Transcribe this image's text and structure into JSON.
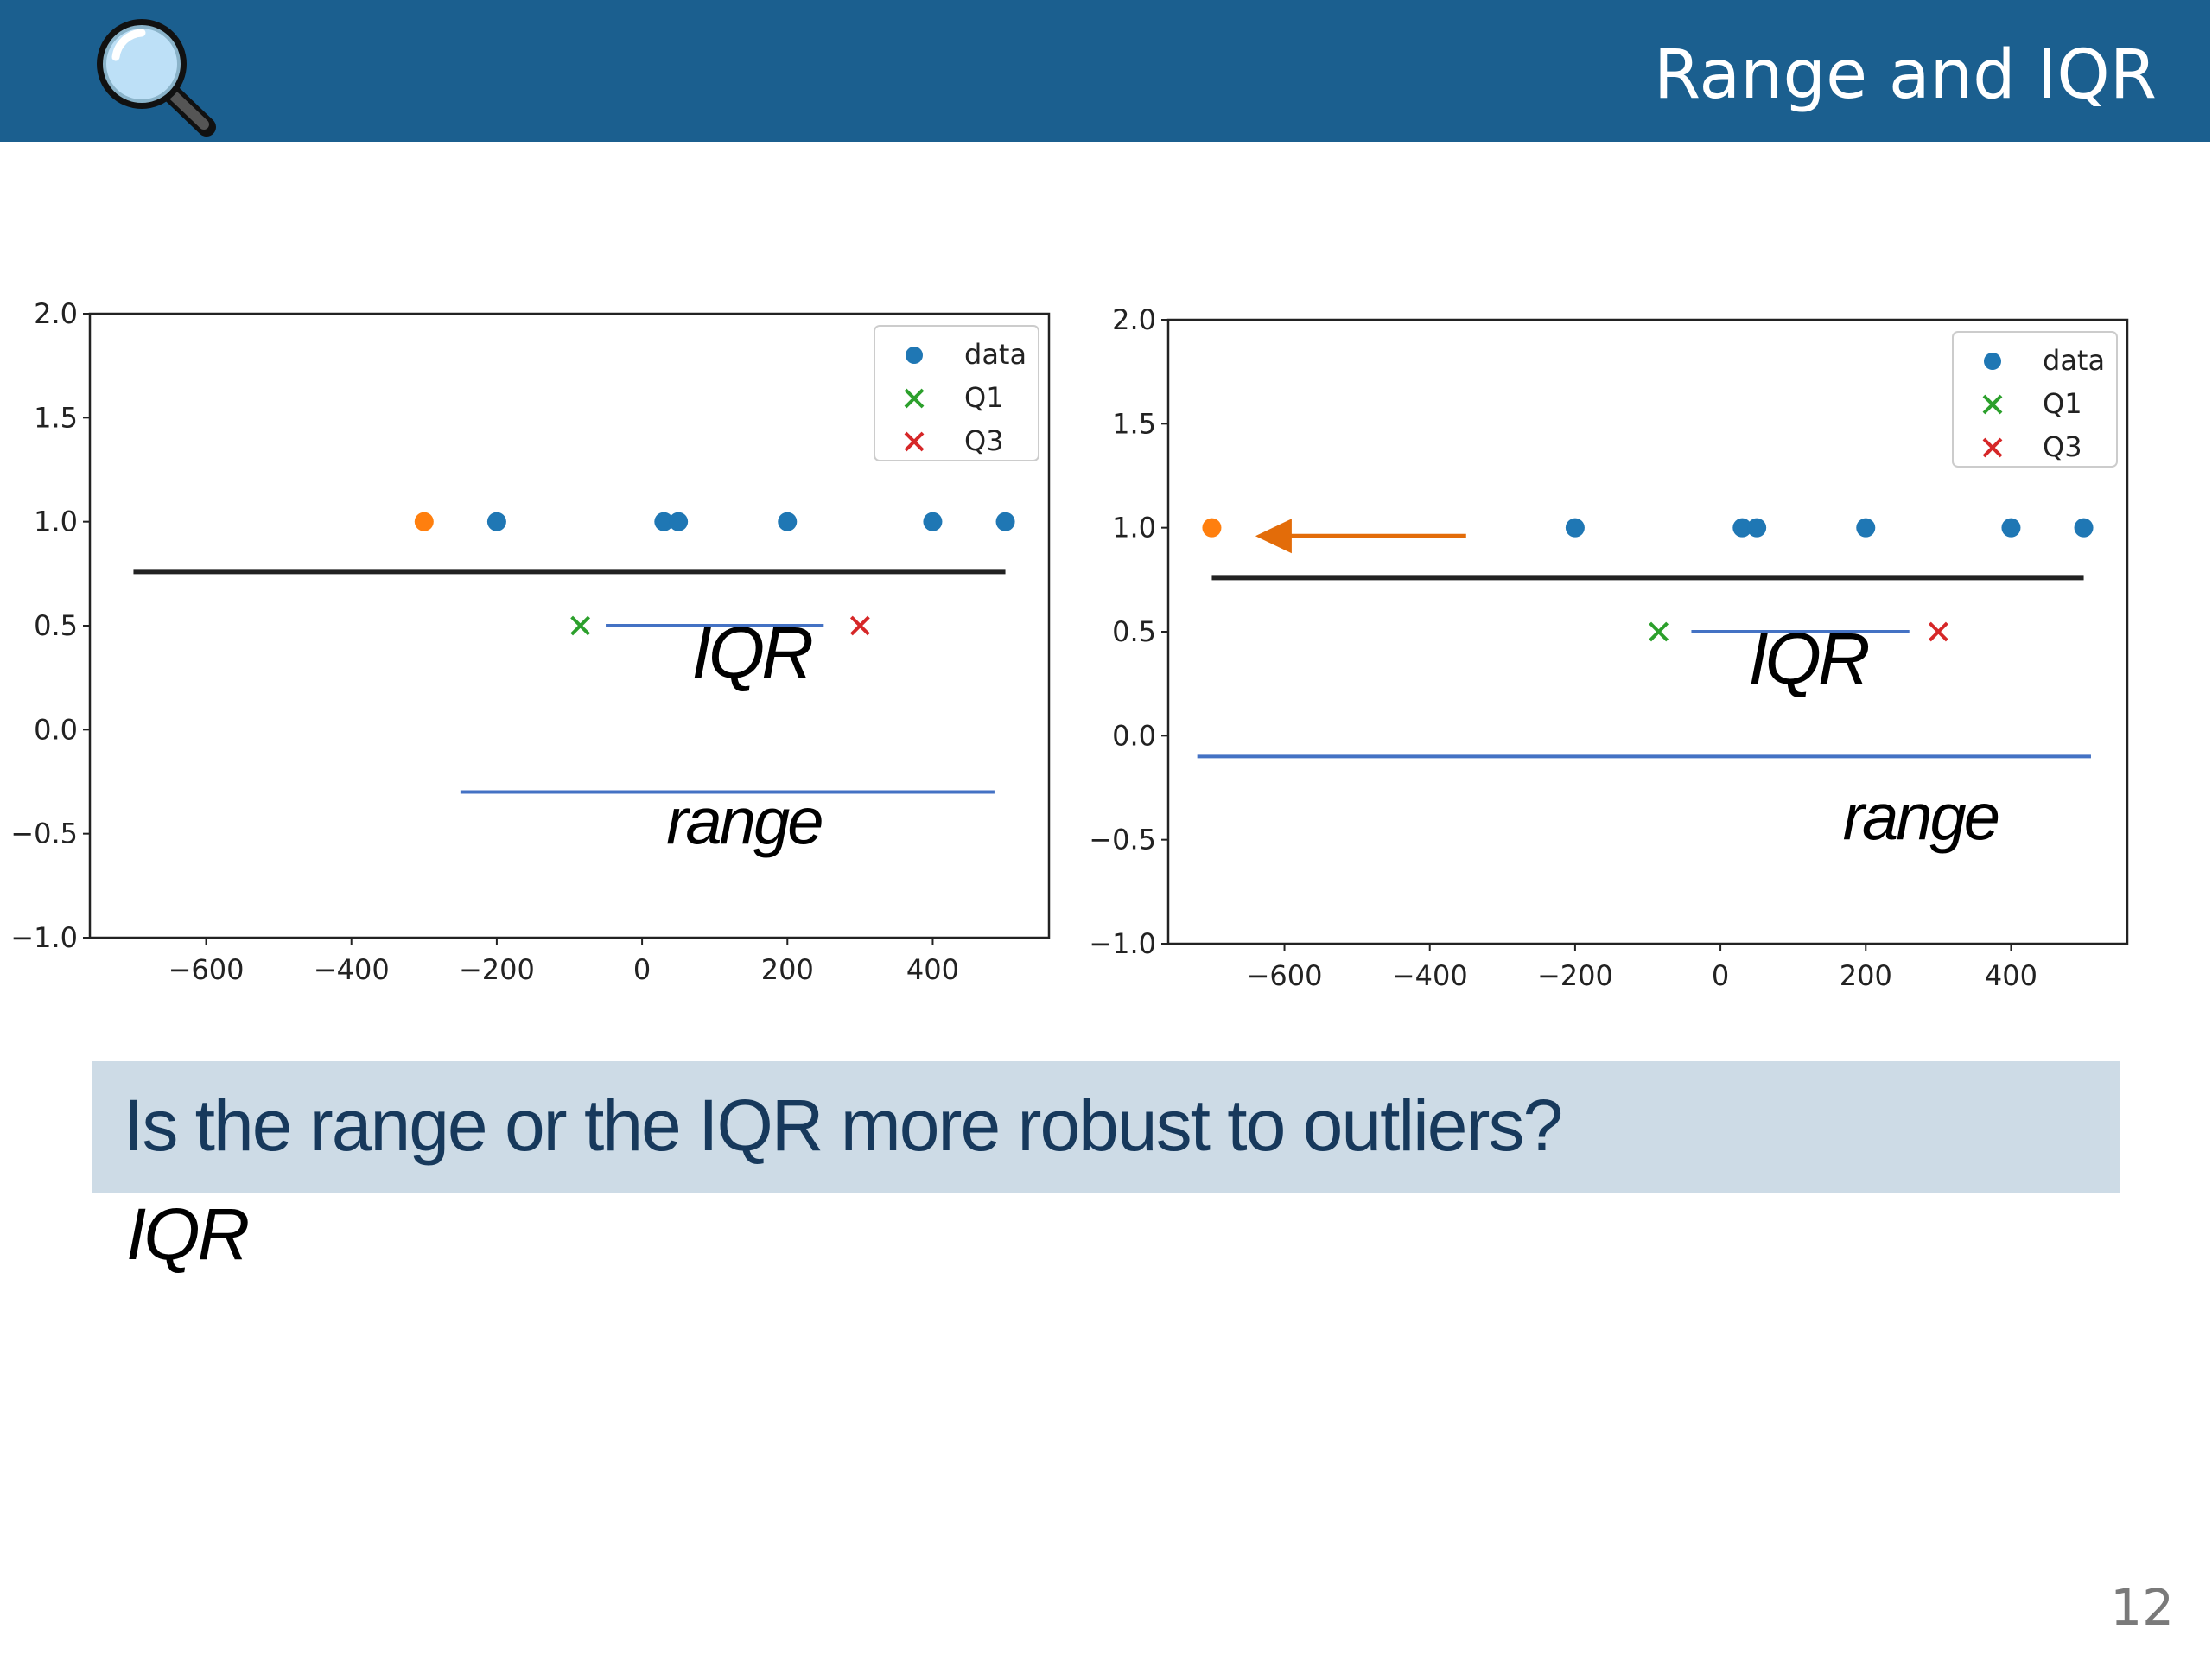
{
  "slide": {
    "title": "Range and IQR",
    "logo_icon": "magnifying-glass-icon",
    "question": "Is the range or the IQR more robust to  outliers?",
    "answer": "IQR",
    "page_number": "12"
  },
  "colors": {
    "header": "#1b5f8f",
    "data": "#1f77b4",
    "outlier": "#ff7f0e",
    "q1": "#2ca02c",
    "q3": "#d62728",
    "range_line": "#000000",
    "iqr_line": "#4472c4",
    "arrow": "#e36c09",
    "question_bg": "#cddbe6"
  },
  "chart_data": [
    {
      "type": "scatter",
      "xlim": [
        -760,
        560
      ],
      "ylim": [
        -1.0,
        2.0
      ],
      "xticks": [
        "-600",
        "-400",
        "-200",
        "0",
        "200",
        "400"
      ],
      "xtick_values": [
        -600,
        -400,
        -200,
        0,
        200,
        400
      ],
      "yticks": [
        "2.0",
        "1.5",
        "1.0",
        "0.5",
        "0.0",
        "-0.5",
        "-1.0"
      ],
      "ytick_values": [
        2.0,
        1.5,
        1.0,
        0.5,
        0.0,
        -0.5,
        -1.0
      ],
      "legend": [
        "data",
        "Q1",
        "Q3"
      ],
      "legend_position": "upper-right",
      "data_points": [
        {
          "x": -200,
          "y": 1.0
        },
        {
          "x": 30,
          "y": 1.0
        },
        {
          "x": 50,
          "y": 1.0
        },
        {
          "x": 200,
          "y": 1.0
        },
        {
          "x": 400,
          "y": 1.0
        },
        {
          "x": 500,
          "y": 1.0
        }
      ],
      "outlier": {
        "x": -300,
        "y": 1.0
      },
      "q1": {
        "x": -85,
        "y": 0.5
      },
      "q3": {
        "x": 300,
        "y": 0.5
      },
      "black_line": {
        "x1": -700,
        "x2": 500,
        "y": 0.76
      },
      "iqr_line": {
        "x1": -50,
        "x2": 250,
        "y": 0.5
      },
      "range_line": {
        "x1": -250,
        "x2": 485,
        "y": -0.3
      },
      "iqr_label": "IQR",
      "iqr_label_pos": {
        "x": 150,
        "y": 0.25
      },
      "range_label": "range",
      "range_label_pos": {
        "x": 140,
        "y": -0.55
      },
      "arrow": null
    },
    {
      "type": "scatter",
      "xlim": [
        -760,
        560
      ],
      "ylim": [
        -1.0,
        2.0
      ],
      "xticks": [
        "-600",
        "-400",
        "-200",
        "0",
        "200",
        "400"
      ],
      "xtick_values": [
        -600,
        -400,
        -200,
        0,
        200,
        400
      ],
      "yticks": [
        "2.0",
        "1.5",
        "1.0",
        "0.5",
        "0.0",
        "-0.5",
        "-1.0"
      ],
      "ytick_values": [
        2.0,
        1.5,
        1.0,
        0.5,
        0.0,
        -0.5,
        -1.0
      ],
      "legend": [
        "data",
        "Q1",
        "Q3"
      ],
      "legend_position": "upper-right",
      "data_points": [
        {
          "x": -200,
          "y": 1.0
        },
        {
          "x": 30,
          "y": 1.0
        },
        {
          "x": 50,
          "y": 1.0
        },
        {
          "x": 200,
          "y": 1.0
        },
        {
          "x": 400,
          "y": 1.0
        },
        {
          "x": 500,
          "y": 1.0
        }
      ],
      "outlier": {
        "x": -700,
        "y": 1.0
      },
      "q1": {
        "x": -85,
        "y": 0.5
      },
      "q3": {
        "x": 300,
        "y": 0.5
      },
      "black_line": {
        "x1": -700,
        "x2": 500,
        "y": 0.76
      },
      "iqr_line": {
        "x1": -40,
        "x2": 260,
        "y": 0.5
      },
      "range_line": {
        "x1": -720,
        "x2": 510,
        "y": -0.1
      },
      "iqr_label": "IQR",
      "iqr_label_pos": {
        "x": 120,
        "y": 0.25
      },
      "range_label": "range",
      "range_label_pos": {
        "x": 275,
        "y": -0.5
      },
      "arrow": {
        "x1": -350,
        "x2": -640,
        "y": 0.96
      }
    }
  ]
}
